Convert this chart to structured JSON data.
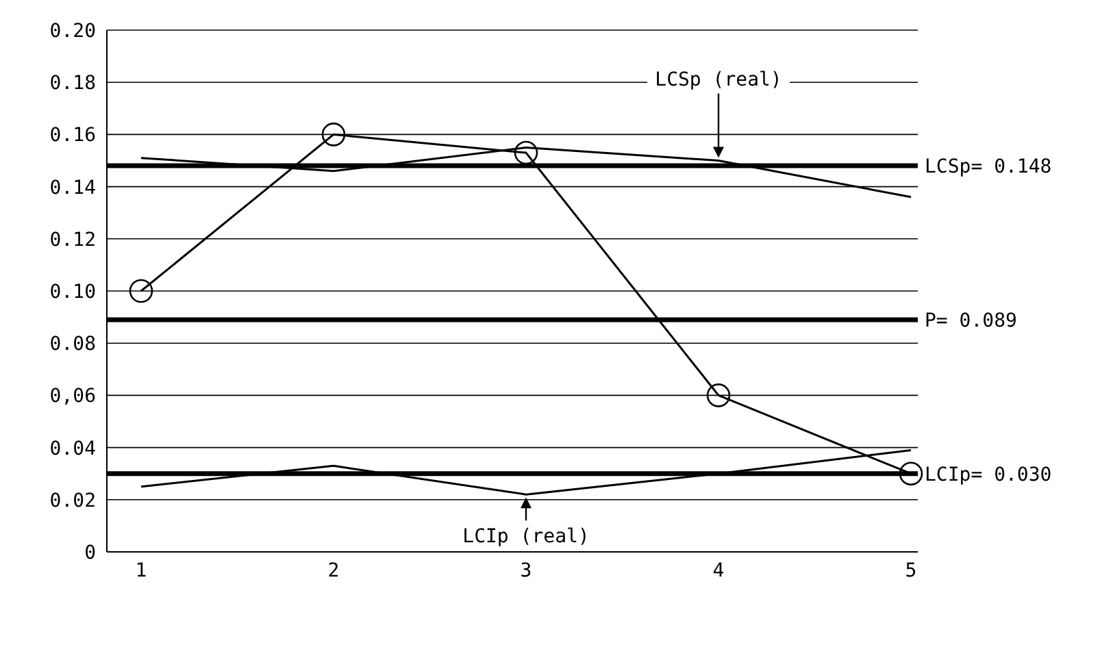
{
  "chart_data": {
    "type": "line",
    "categories": [
      "1",
      "2",
      "3",
      "4",
      "5"
    ],
    "series": [
      {
        "color": "#000000",
        "values": [
          0.1,
          0.16,
          0.153,
          0.06,
          0.03
        ],
        "marker": "circle"
      },
      {
        "color": "#000000",
        "values": [
          0.151,
          0.146,
          0.155,
          0.15,
          0.136
        ],
        "marker": "none"
      },
      {
        "color": "#000000",
        "values": [
          0.025,
          0.033,
          0.022,
          0.03,
          0.039
        ],
        "marker": "none"
      }
    ],
    "ylim": [
      0,
      0.2
    ],
    "yticks": [
      {
        "value": 0,
        "label": "0"
      },
      {
        "value": 0.02,
        "label": "0.02"
      },
      {
        "value": 0.04,
        "label": "0.04"
      },
      {
        "value": 0.06,
        "label": "0,06"
      },
      {
        "value": 0.08,
        "label": "0.08"
      },
      {
        "value": 0.1,
        "label": "0.10"
      },
      {
        "value": 0.12,
        "label": "0.12"
      },
      {
        "value": 0.14,
        "label": "0.14"
      },
      {
        "value": 0.16,
        "label": "0.16"
      },
      {
        "value": 0.18,
        "label": "0.18"
      },
      {
        "value": 0.2,
        "label": "0.20"
      }
    ],
    "grid": "y",
    "legend": false,
    "line_style": "solid",
    "ref_lines": [
      {
        "axis": "y",
        "value": 0.148,
        "label": "LCSp= 0.148",
        "color": "#000000"
      },
      {
        "axis": "y",
        "value": 0.089,
        "label": "P= 0.089",
        "color": "#000000"
      },
      {
        "axis": "y",
        "value": 0.03,
        "label": "LCIp= 0.030",
        "color": "#000000"
      }
    ],
    "annotations": [
      {
        "text": "LCSp (real)",
        "x": "4",
        "y": 0.15
      },
      {
        "text": "LCIp (real)",
        "x": "3",
        "y": 0.022
      }
    ]
  }
}
